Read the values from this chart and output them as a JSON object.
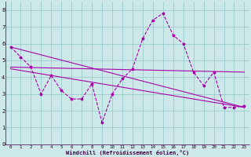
{
  "xlabel": "Windchill (Refroidissement éolien,°C)",
  "bg_color": "#cce8e8",
  "grid_color": "#99cccc",
  "line_color": "#aa00aa",
  "xlim": [
    -0.5,
    23.5
  ],
  "ylim": [
    0,
    8.5
  ],
  "xticks": [
    0,
    1,
    2,
    3,
    4,
    5,
    6,
    7,
    8,
    9,
    10,
    11,
    12,
    13,
    14,
    15,
    16,
    17,
    18,
    19,
    20,
    21,
    22,
    23
  ],
  "yticks": [
    0,
    1,
    2,
    3,
    4,
    5,
    6,
    7,
    8
  ],
  "main_x": [
    0,
    1,
    2,
    3,
    4,
    5,
    6,
    7,
    8,
    9,
    10,
    11,
    12,
    13,
    14,
    15,
    16,
    17,
    18,
    19,
    20,
    21,
    22,
    23
  ],
  "main_y": [
    5.8,
    5.2,
    4.6,
    3.0,
    4.1,
    3.2,
    2.7,
    2.7,
    3.6,
    1.3,
    3.0,
    3.9,
    4.5,
    6.3,
    7.4,
    7.8,
    6.5,
    6.0,
    4.3,
    3.5,
    4.3,
    2.2,
    2.2,
    2.3
  ],
  "trend1_x": [
    0,
    23
  ],
  "trend1_y": [
    5.8,
    2.2
  ],
  "trend2_x": [
    0,
    23
  ],
  "trend2_y": [
    4.6,
    4.3
  ],
  "trend3_x": [
    0,
    23
  ],
  "trend3_y": [
    4.5,
    2.2
  ]
}
